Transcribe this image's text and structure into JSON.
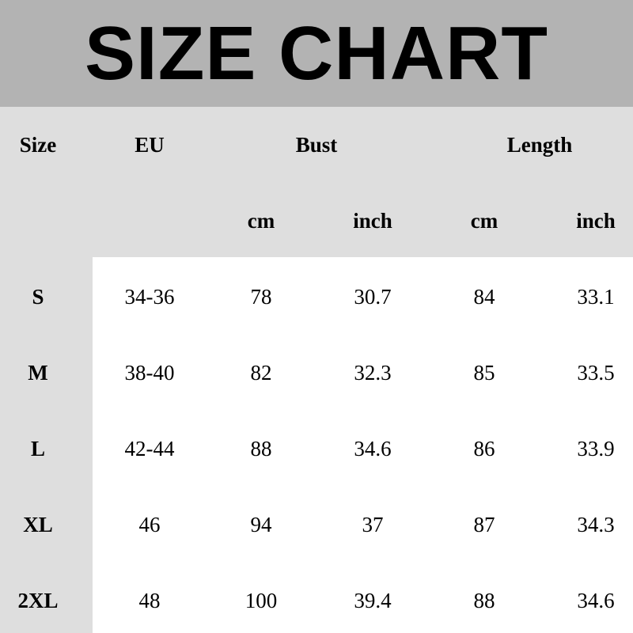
{
  "title": "SIZE CHART",
  "header": {
    "size": "Size",
    "eu": "EU",
    "bust": "Bust",
    "length": "Length",
    "sub": [
      "cm",
      "inch",
      "cm",
      "inch"
    ]
  },
  "rows": [
    {
      "size": "S",
      "eu": "34-36",
      "bust_cm": "78",
      "bust_inch": "30.7",
      "length_cm": "84",
      "length_inch": "33.1"
    },
    {
      "size": "M",
      "eu": "38-40",
      "bust_cm": "82",
      "bust_inch": "32.3",
      "length_cm": "85",
      "length_inch": "33.5"
    },
    {
      "size": "L",
      "eu": "42-44",
      "bust_cm": "88",
      "bust_inch": "34.6",
      "length_cm": "86",
      "length_inch": "33.9"
    },
    {
      "size": "XL",
      "eu": "46",
      "bust_cm": "94",
      "bust_inch": "37",
      "length_cm": "87",
      "length_inch": "34.3"
    },
    {
      "size": "2XL",
      "eu": "48",
      "bust_cm": "100",
      "bust_inch": "39.4",
      "length_cm": "88",
      "length_inch": "34.6"
    }
  ],
  "colors": {
    "title_band": "#b3b3b3",
    "header_band": "#dedede",
    "body": "#ffffff"
  }
}
